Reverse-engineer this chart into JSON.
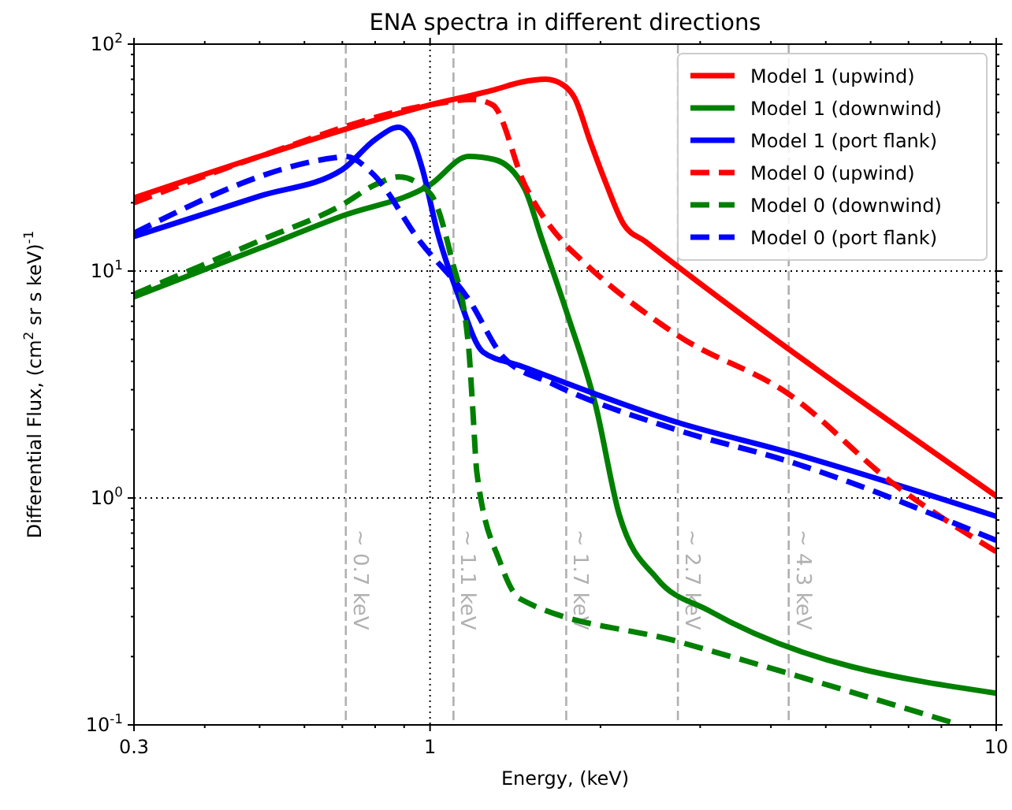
{
  "chart_data": {
    "type": "line",
    "title": "ENA spectra in different directions",
    "xlabel": "Energy, (keV)",
    "ylabel": "Differential Flux, (cm$^{2}$ sr s keV)$^{-1}$",
    "log": "xy",
    "grid": true,
    "legend": "top right",
    "xlim": [
      0.3,
      10
    ],
    "ylim": [
      0.1,
      100
    ],
    "xticks": [
      0.3,
      {
        "value": 0.4,
        "label": null
      },
      {
        "value": 0.5,
        "label": null
      },
      {
        "value": 0.6,
        "label": null
      },
      {
        "value": 0.7,
        "label": null
      },
      {
        "value": 0.8,
        "label": null
      },
      {
        "value": 0.9,
        "label": null
      },
      1,
      {
        "value": 2,
        "label": null
      },
      {
        "value": 3,
        "label": null
      },
      {
        "value": 4,
        "label": null
      },
      {
        "value": 5,
        "label": null
      },
      {
        "value": 6,
        "label": null
      },
      {
        "value": 7,
        "label": null
      },
      {
        "value": 8,
        "label": null
      },
      {
        "value": 9,
        "label": null
      },
      10
    ],
    "yticks": [
      {
        "value": 0.1,
        "label": "10$^{-1}$"
      },
      {
        "value": 0.2,
        "label": null
      },
      {
        "value": 0.3,
        "label": null
      },
      {
        "value": 0.4,
        "label": null
      },
      {
        "value": 0.5,
        "label": null
      },
      {
        "value": 0.6,
        "label": null
      },
      {
        "value": 0.7,
        "label": null
      },
      {
        "value": 0.8,
        "label": null
      },
      {
        "value": 0.9,
        "label": null
      },
      {
        "value": 1,
        "label": "10$^{0}$"
      },
      {
        "value": 2,
        "label": null
      },
      {
        "value": 3,
        "label": null
      },
      {
        "value": 4,
        "label": null
      },
      {
        "value": 5,
        "label": null
      },
      {
        "value": 6,
        "label": null
      },
      {
        "value": 7,
        "label": null
      },
      {
        "value": 8,
        "label": null
      },
      {
        "value": 9,
        "label": null
      },
      {
        "value": 10,
        "label": "10$^{1}$"
      },
      {
        "value": 20,
        "label": null
      },
      {
        "value": 30,
        "label": null
      },
      {
        "value": 40,
        "label": null
      },
      {
        "value": 50,
        "label": null
      },
      {
        "value": 60,
        "label": null
      },
      {
        "value": 70,
        "label": null
      },
      {
        "value": 80,
        "label": null
      },
      {
        "value": 90,
        "label": null
      },
      {
        "value": 100,
        "label": "10$^{2}$"
      }
    ],
    "ref_lines": [
      {
        "axis": "x",
        "value": 0.71,
        "label": "~ 0.7 keV",
        "color": "#b0b0b0",
        "line_style": "dashed"
      },
      {
        "axis": "x",
        "value": 1.1,
        "label": "~ 1.1 keV",
        "color": "#b0b0b0",
        "line_style": "dashed"
      },
      {
        "axis": "x",
        "value": 1.74,
        "label": "~ 1.7 keV",
        "color": "#b0b0b0",
        "line_style": "dashed"
      },
      {
        "axis": "x",
        "value": 2.74,
        "label": "~ 2.7 keV",
        "color": "#b0b0b0",
        "line_style": "dashed"
      },
      {
        "axis": "x",
        "value": 4.3,
        "label": "~ 4.3 keV",
        "color": "#b0b0b0",
        "line_style": "dashed"
      }
    ],
    "series": [
      {
        "name": "Model 1 (upwind)",
        "color": "#ff0000",
        "line_style": "solid",
        "x": [
          0.3,
          0.5,
          1,
          1.3,
          1.45,
          1.6,
          1.72,
          1.8,
          1.92,
          2.05,
          2.2,
          2.4,
          10
        ],
        "values": [
          21,
          32,
          54,
          63,
          68,
          70,
          66,
          58,
          37,
          24,
          16,
          13.5,
          1.02
        ]
      },
      {
        "name": "Model 1 (downwind)",
        "color": "#008000",
        "line_style": "solid",
        "x": [
          0.3,
          0.5,
          0.7,
          1,
          1.17,
          1.3,
          1.47,
          1.57,
          1.75,
          1.96,
          2.16,
          2.52,
          3.1,
          10
        ],
        "values": [
          7.7,
          12.6,
          17.5,
          24,
          32,
          31,
          23,
          14.2,
          6.4,
          2.57,
          0.84,
          0.44,
          0.32,
          0.138
        ]
      },
      {
        "name": "Model 1 (port flank)",
        "color": "#0000ff",
        "line_style": "solid",
        "x": [
          0.3,
          0.5,
          0.7,
          0.8,
          0.88,
          0.93,
          0.97,
          1.03,
          1.12,
          1.24,
          1.44,
          2.74,
          4.3,
          10
        ],
        "values": [
          14.2,
          21.4,
          28,
          38,
          43,
          38,
          28,
          14.9,
          7.9,
          4.4,
          3.83,
          2.15,
          1.59,
          0.83
        ]
      },
      {
        "name": "Model 0 (upwind)",
        "color": "#ff0000",
        "line_style": "dashed",
        "x": [
          0.3,
          0.5,
          1,
          1.19,
          1.29,
          1.47,
          1.71,
          1.85,
          2.74,
          4.3,
          6.6,
          10
        ],
        "values": [
          20,
          32,
          54,
          57,
          54,
          24,
          13.6,
          11.2,
          5.2,
          2.87,
          1.15,
          0.58
        ]
      },
      {
        "name": "Model 0 (downwind)",
        "color": "#008000",
        "line_style": "dashed",
        "x": [
          0.3,
          0.5,
          0.7,
          0.8,
          0.88,
          1,
          1.09,
          1.17,
          1.19,
          1.21,
          1.33,
          1.44,
          2.74,
          8.3
        ],
        "values": [
          7.9,
          13.6,
          19.6,
          24,
          26,
          22,
          11.5,
          4.6,
          2.45,
          1.29,
          0.52,
          0.36,
          0.233,
          0.103
        ]
      },
      {
        "name": "Model 0 (port flank)",
        "color": "#0000ff",
        "line_style": "dashed",
        "x": [
          0.3,
          0.68,
          0.71,
          0.79,
          0.96,
          1.17,
          1.35,
          1.64,
          2.74,
          4.3,
          10
        ],
        "values": [
          14.7,
          31.6,
          32,
          27,
          13.5,
          7.5,
          4.15,
          3.2,
          1.99,
          1.45,
          0.65
        ]
      }
    ]
  }
}
